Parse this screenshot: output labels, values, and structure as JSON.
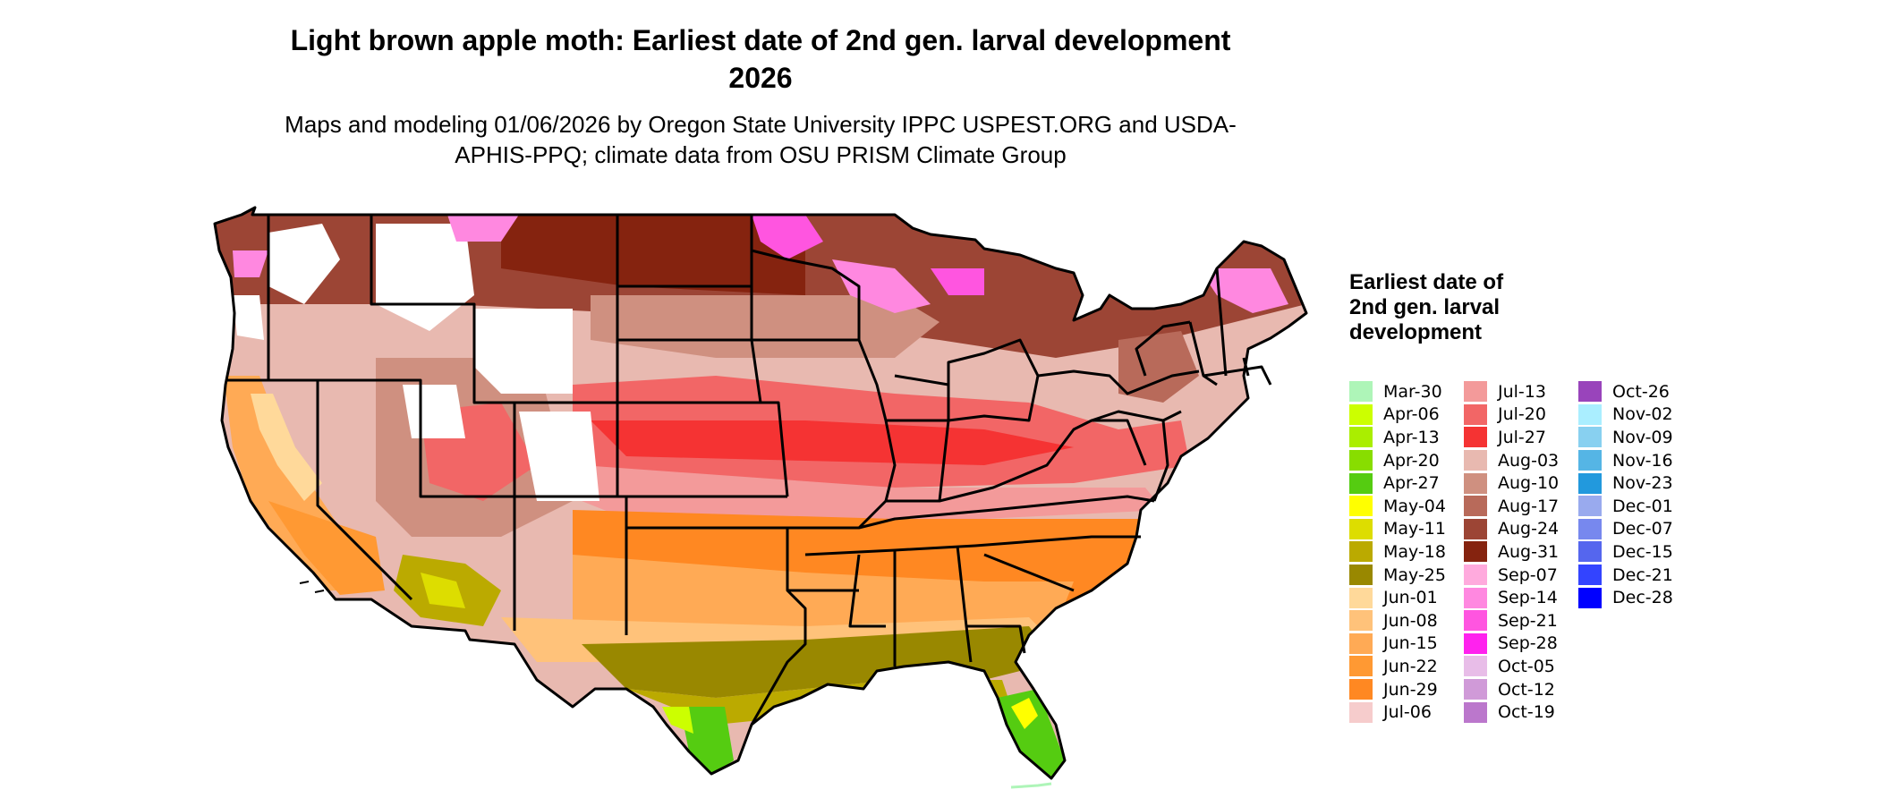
{
  "title": "Light brown apple moth: Earliest date of 2nd gen. larval development 2026",
  "subtitle": "Maps and modeling 01/06/2026 by Oregon State University IPPC USPEST.ORG and USDA-APHIS-PPQ; climate data from OSU PRISM Climate Group",
  "legend": {
    "title": "Earliest date of 2nd gen. larval development",
    "items": [
      {
        "label": "Mar-30",
        "color": "#aef5b8"
      },
      {
        "label": "Apr-06",
        "color": "#ccff00"
      },
      {
        "label": "Apr-13",
        "color": "#aaee00"
      },
      {
        "label": "Apr-20",
        "color": "#88dd00"
      },
      {
        "label": "Apr-27",
        "color": "#55cc11"
      },
      {
        "label": "May-04",
        "color": "#ffff00"
      },
      {
        "label": "May-11",
        "color": "#dddd00"
      },
      {
        "label": "May-18",
        "color": "#bbaa00"
      },
      {
        "label": "May-25",
        "color": "#998800"
      },
      {
        "label": "Jun-01",
        "color": "#ffd99a"
      },
      {
        "label": "Jun-08",
        "color": "#ffc27a"
      },
      {
        "label": "Jun-15",
        "color": "#ffaa55"
      },
      {
        "label": "Jun-22",
        "color": "#ff9933"
      },
      {
        "label": "Jun-29",
        "color": "#ff8822"
      },
      {
        "label": "Jul-06",
        "color": "#f6cccc"
      },
      {
        "label": "Jul-13",
        "color": "#f39a9a"
      },
      {
        "label": "Jul-20",
        "color": "#f26666"
      },
      {
        "label": "Jul-27",
        "color": "#f53333"
      },
      {
        "label": "Aug-03",
        "color": "#e8b9b0"
      },
      {
        "label": "Aug-10",
        "color": "#cf9080"
      },
      {
        "label": "Aug-17",
        "color": "#b86a5a"
      },
      {
        "label": "Aug-24",
        "color": "#9c4535"
      },
      {
        "label": "Aug-31",
        "color": "#85230f"
      },
      {
        "label": "Sep-07",
        "color": "#ffaadd"
      },
      {
        "label": "Sep-14",
        "color": "#ff88e0"
      },
      {
        "label": "Sep-21",
        "color": "#ff55e0"
      },
      {
        "label": "Sep-28",
        "color": "#ff22ee"
      },
      {
        "label": "Oct-05",
        "color": "#e8bde8"
      },
      {
        "label": "Oct-12",
        "color": "#d09ad8"
      },
      {
        "label": "Oct-19",
        "color": "#bb77cc"
      },
      {
        "label": "Oct-26",
        "color": "#9944bb"
      },
      {
        "label": "Nov-02",
        "color": "#aaeeff"
      },
      {
        "label": "Nov-09",
        "color": "#88d0f0"
      },
      {
        "label": "Nov-16",
        "color": "#55b5e5"
      },
      {
        "label": "Nov-23",
        "color": "#2299dd"
      },
      {
        "label": "Dec-01",
        "color": "#99aaee"
      },
      {
        "label": "Dec-07",
        "color": "#7788ee"
      },
      {
        "label": "Dec-15",
        "color": "#5566ee"
      },
      {
        "label": "Dec-21",
        "color": "#3344ff"
      },
      {
        "label": "Dec-28",
        "color": "#0000ff"
      }
    ]
  }
}
